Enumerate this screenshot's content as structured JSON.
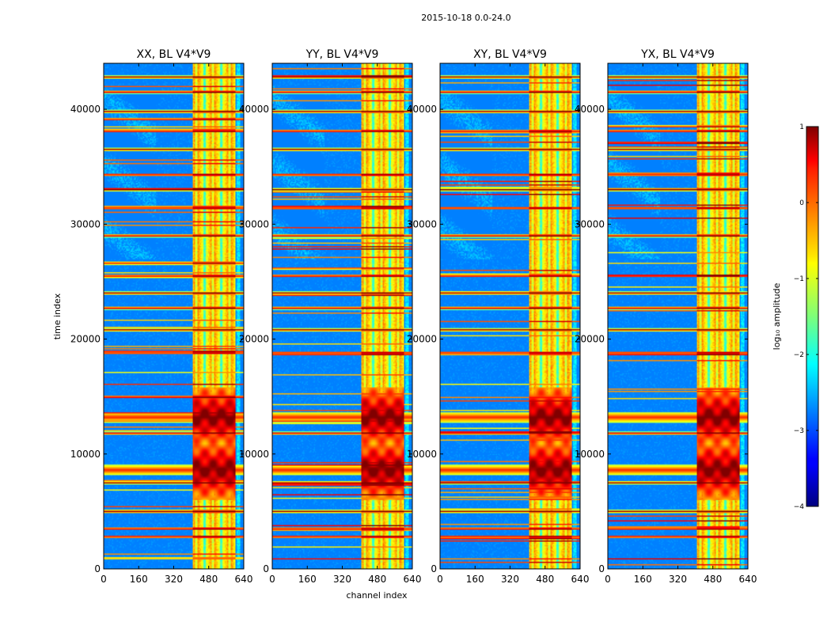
{
  "chart_data": {
    "type": "heatmap",
    "suptitle": "2015-10-18 0.0-24.0",
    "xlabel": "channel index",
    "ylabel": "time index",
    "xlim": [
      0,
      640
    ],
    "ylim": [
      0,
      44000
    ],
    "xticks": [
      0,
      160,
      320,
      480,
      640
    ],
    "xtick_labels": [
      "0",
      "160",
      "320",
      "480",
      "640"
    ],
    "yticks": [
      0,
      10000,
      20000,
      30000,
      40000
    ],
    "ytick_labels": [
      "0",
      "10000",
      "20000",
      "30000",
      "40000"
    ],
    "panels": [
      {
        "title": "XX, BL V4*V9"
      },
      {
        "title": "YY, BL V4*V9"
      },
      {
        "title": "XY, BL V4*V9"
      },
      {
        "title": "YX, BL V4*V9"
      }
    ],
    "colorbar": {
      "label": "log₁₀ amplitude",
      "colormap": "jet",
      "range": [
        -4,
        1
      ],
      "ticks": [
        1,
        0,
        -1,
        -2,
        -3,
        -4
      ],
      "tick_labels": [
        "1",
        "0",
        "−1",
        "−2",
        "−3",
        "−4"
      ]
    },
    "features": {
      "bright_channel_band": [
        405,
        600
      ],
      "strong_rfi_bursts_time": [
        8600,
        13200
      ],
      "rfi_lines_time": [
        2800,
        3500,
        5000,
        7500,
        11800,
        18800,
        20800,
        22700,
        24000,
        25500,
        29000,
        31400,
        33000,
        34300,
        36500,
        38100,
        39800,
        41500,
        42800
      ]
    }
  }
}
